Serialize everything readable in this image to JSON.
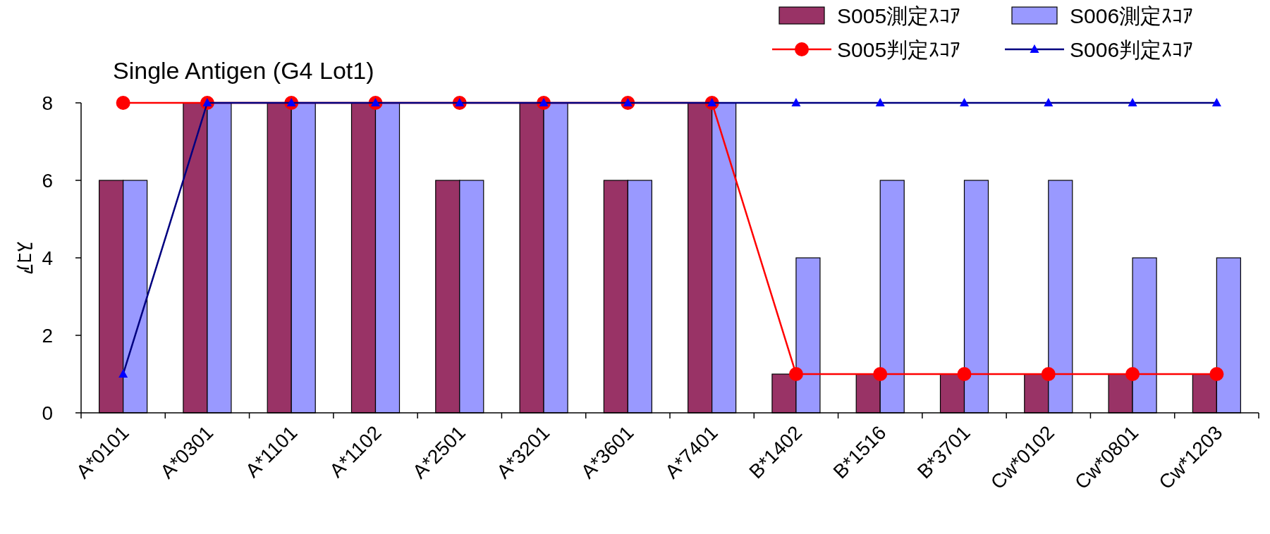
{
  "chart_data": {
    "type": "bar",
    "title": "Single Antigen (G4 Lot1)",
    "ylabel": "ｽｺｱ",
    "categories": [
      "A*0101",
      "A*0301",
      "A*1101",
      "A*1102",
      "A*2501",
      "A*3201",
      "A*3601",
      "A*7401",
      "B*1402",
      "B*1516",
      "B*3701",
      "Cw*0102",
      "Cw*0801",
      "Cw*1203"
    ],
    "series": [
      {
        "name": "S005測定ｽｺｱ",
        "color": "#993366",
        "values": [
          6,
          8,
          8,
          8,
          6,
          8,
          6,
          8,
          1,
          1,
          1,
          1,
          1,
          1
        ]
      },
      {
        "name": "S006測定ｽｺｱ",
        "color": "#9999ff",
        "values": [
          6,
          8,
          8,
          8,
          6,
          8,
          6,
          8,
          4,
          6,
          6,
          6,
          4,
          4
        ]
      },
      {
        "name": "S005判定ｽｺｱ",
        "type": "line",
        "color": "#ff0000",
        "marker": "circle",
        "values": [
          8,
          8,
          8,
          8,
          8,
          8,
          8,
          8,
          1,
          1,
          1,
          1,
          1,
          1
        ]
      },
      {
        "name": "S006判定ｽｺｱ",
        "type": "line",
        "color": "#000080",
        "marker": "triangle",
        "values": [
          1,
          8,
          8,
          8,
          8,
          8,
          8,
          8,
          8,
          8,
          8,
          8,
          8,
          8
        ]
      }
    ],
    "ylim": [
      0,
      8
    ],
    "yticks": [
      0,
      2,
      4,
      6,
      8
    ],
    "grid": false,
    "legend": "top right"
  }
}
